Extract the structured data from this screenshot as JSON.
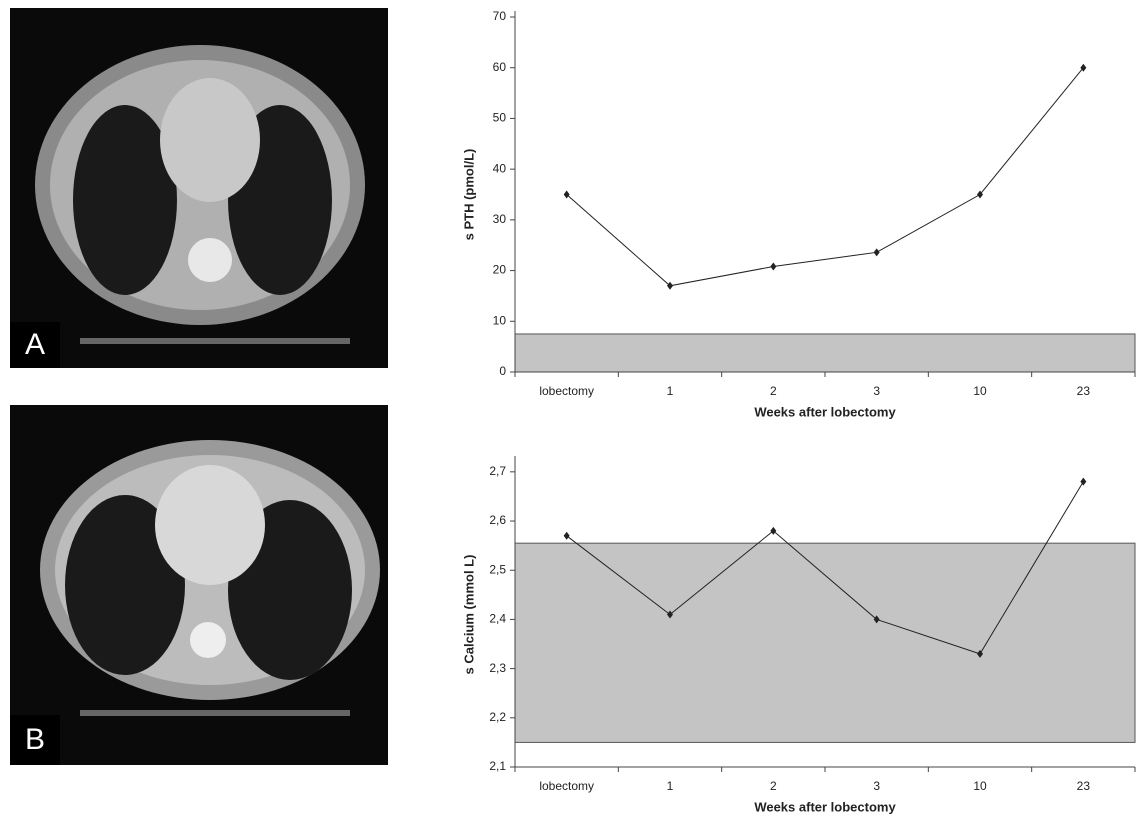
{
  "panels": [
    {
      "label": "A"
    },
    {
      "label": "B"
    }
  ],
  "chart_data": [
    {
      "type": "line",
      "y_label": "s PTH (pmol/L)",
      "x_label": "Weeks after lobectomy",
      "categories": [
        "lobectomy",
        "1",
        "2",
        "3",
        "10",
        "23"
      ],
      "values": [
        35,
        17,
        20.8,
        23.6,
        35,
        60
      ],
      "color": "#222222",
      "ylim": [
        0,
        70
      ],
      "yticks": [
        0,
        10,
        20,
        30,
        40,
        50,
        60,
        70
      ],
      "reference_range": [
        0,
        7.5
      ],
      "reference_color": "#c4c4c4"
    },
    {
      "type": "line",
      "y_label": "s Calcium (mmol L)",
      "x_label": "Weeks after lobectomy",
      "categories": [
        "lobectomy",
        "1",
        "2",
        "3",
        "10",
        "23"
      ],
      "values": [
        2.57,
        2.41,
        2.58,
        2.4,
        2.33,
        2.68
      ],
      "color": "#222222",
      "ylim": [
        2.1,
        2.72
      ],
      "yticks": [
        {
          "value": 2.1,
          "label": "2,1"
        },
        {
          "value": 2.2,
          "label": "2,2"
        },
        {
          "value": 2.3,
          "label": "2,3"
        },
        {
          "value": 2.4,
          "label": "2,4"
        },
        {
          "value": 2.5,
          "label": "2,5"
        },
        {
          "value": 2.6,
          "label": "2,6"
        },
        {
          "value": 2.7,
          "label": "2,7"
        }
      ],
      "reference_range": [
        2.15,
        2.555
      ],
      "reference_color": "#c4c4c4"
    }
  ]
}
